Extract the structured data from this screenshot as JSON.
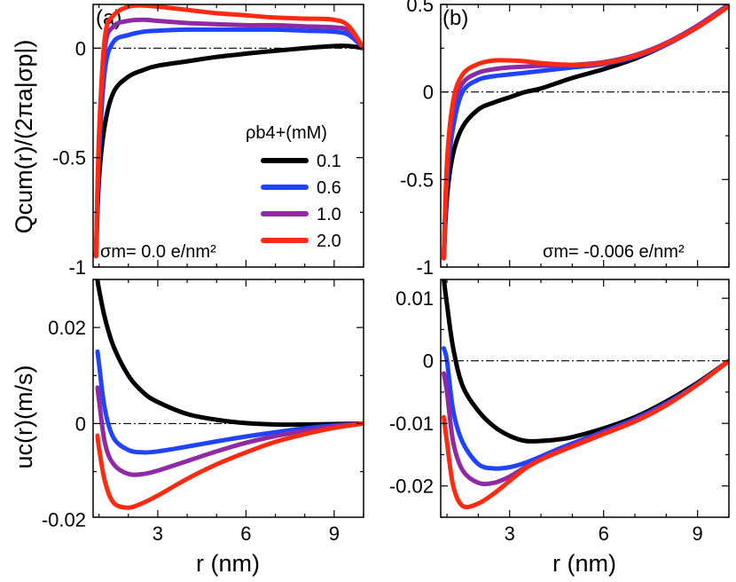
{
  "figure": {
    "x_axis_label": "r (nm)",
    "y_axis_label_top": "Qcum(r)/(2πa|σp|)",
    "y_axis_label_bottom": "uc(r)(m/s)"
  },
  "legend": {
    "title": "ρb4+(mM)",
    "entries": [
      {
        "label": "0.1",
        "color": "#000000"
      },
      {
        "label": "0.6",
        "color": "#1f44ff"
      },
      {
        "label": "1.0",
        "color": "#8e2aa3"
      },
      {
        "label": "2.0",
        "color": "#ff2a12"
      }
    ]
  },
  "chart_data": [
    {
      "id": "a",
      "type": "line",
      "panel_label": "(a)",
      "annotation": "σm= 0.0 e/nm²",
      "xlabel": "",
      "ylabel": "Qcum(r)/(2πa|σp|)",
      "xlim": [
        0.8,
        10
      ],
      "ylim": [
        -1,
        0.2
      ],
      "xticks": [
        3,
        6,
        9
      ],
      "yticks": [
        -1,
        -0.5,
        0
      ],
      "ytick_labels": [
        "-1",
        "-0.5",
        "0"
      ],
      "reference_line": 0,
      "series": [
        {
          "name": "0.1",
          "color": "#000000",
          "x": [
            0.9,
            1.0,
            1.2,
            1.5,
            2.0,
            2.5,
            3.0,
            4.0,
            5.0,
            6.0,
            7.0,
            8.0,
            9.0,
            9.5,
            10.0
          ],
          "y": [
            -0.95,
            -0.6,
            -0.35,
            -0.2,
            -0.13,
            -0.1,
            -0.08,
            -0.06,
            -0.04,
            -0.025,
            -0.012,
            0.0,
            0.01,
            0.01,
            0.0
          ]
        },
        {
          "name": "0.6",
          "color": "#1f44ff",
          "x": [
            0.9,
            1.0,
            1.2,
            1.5,
            2.0,
            2.5,
            3.0,
            4.0,
            5.0,
            6.0,
            7.0,
            8.0,
            9.0,
            9.5,
            10.0
          ],
          "y": [
            -0.95,
            -0.5,
            -0.1,
            0.03,
            0.06,
            0.075,
            0.08,
            0.085,
            0.085,
            0.085,
            0.085,
            0.08,
            0.075,
            0.06,
            0.0
          ]
        },
        {
          "name": "1.0",
          "color": "#8e2aa3",
          "x": [
            0.9,
            1.0,
            1.2,
            1.5,
            2.0,
            2.5,
            3.0,
            4.0,
            5.0,
            6.0,
            7.0,
            8.0,
            9.0,
            9.5,
            10.0
          ],
          "y": [
            -0.95,
            -0.45,
            0.0,
            0.1,
            0.125,
            0.13,
            0.125,
            0.115,
            0.11,
            0.105,
            0.105,
            0.1,
            0.095,
            0.08,
            0.0
          ]
        },
        {
          "name": "2.0",
          "color": "#ff2a12",
          "x": [
            0.9,
            1.0,
            1.2,
            1.5,
            2.0,
            2.5,
            3.0,
            4.0,
            5.0,
            6.0,
            7.0,
            8.0,
            9.0,
            9.5,
            10.0
          ],
          "y": [
            -0.95,
            -0.4,
            0.05,
            0.15,
            0.19,
            0.195,
            0.19,
            0.175,
            0.16,
            0.15,
            0.14,
            0.135,
            0.13,
            0.1,
            0.0
          ]
        }
      ]
    },
    {
      "id": "b",
      "type": "line",
      "panel_label": "(b)",
      "annotation": "σm= -0.006 e/nm²",
      "xlabel": "",
      "ylabel": "",
      "xlim": [
        0.8,
        10
      ],
      "ylim": [
        -1,
        0.5
      ],
      "xticks": [
        3,
        6,
        9
      ],
      "yticks": [
        -1,
        -0.5,
        0,
        0.5
      ],
      "ytick_labels": [
        "-1",
        "-0.5",
        "0",
        "0.5"
      ],
      "reference_line": 0,
      "series": [
        {
          "name": "0.1",
          "color": "#000000",
          "x": [
            0.9,
            1.0,
            1.2,
            1.5,
            2.0,
            2.5,
            3.0,
            3.5,
            4.0,
            5.0,
            6.0,
            7.0,
            8.0,
            9.0,
            10.0
          ],
          "y": [
            -0.95,
            -0.6,
            -0.35,
            -0.2,
            -0.1,
            -0.06,
            -0.03,
            0.0,
            0.02,
            0.08,
            0.13,
            0.19,
            0.27,
            0.37,
            0.49
          ]
        },
        {
          "name": "0.6",
          "color": "#1f44ff",
          "x": [
            0.9,
            1.0,
            1.2,
            1.5,
            2.0,
            2.5,
            3.0,
            3.5,
            4.0,
            5.0,
            6.0,
            7.0,
            8.0,
            9.0,
            10.0
          ],
          "y": [
            -0.95,
            -0.5,
            -0.2,
            0.0,
            0.07,
            0.09,
            0.1,
            0.11,
            0.12,
            0.14,
            0.16,
            0.2,
            0.27,
            0.37,
            0.5
          ]
        },
        {
          "name": "1.0",
          "color": "#8e2aa3",
          "x": [
            0.9,
            1.0,
            1.2,
            1.5,
            2.0,
            2.5,
            3.0,
            3.5,
            4.0,
            5.0,
            6.0,
            7.0,
            8.0,
            9.0,
            10.0
          ],
          "y": [
            -0.95,
            -0.45,
            -0.1,
            0.05,
            0.11,
            0.13,
            0.14,
            0.145,
            0.15,
            0.155,
            0.17,
            0.21,
            0.28,
            0.38,
            0.5
          ]
        },
        {
          "name": "2.0",
          "color": "#ff2a12",
          "x": [
            0.9,
            1.0,
            1.2,
            1.5,
            2.0,
            2.5,
            3.0,
            3.5,
            4.0,
            5.0,
            6.0,
            7.0,
            8.0,
            9.0,
            10.0
          ],
          "y": [
            -0.95,
            -0.4,
            -0.05,
            0.1,
            0.16,
            0.18,
            0.18,
            0.175,
            0.165,
            0.155,
            0.165,
            0.205,
            0.275,
            0.37,
            0.49
          ]
        }
      ]
    },
    {
      "id": "c",
      "type": "line",
      "panel_label": "",
      "annotation": "",
      "xlabel": "r (nm)",
      "ylabel": "uc(r)(m/s)",
      "xlim": [
        0.8,
        10
      ],
      "ylim": [
        -0.0195,
        0.03
      ],
      "xticks": [
        3,
        6,
        9
      ],
      "yticks": [
        -0.02,
        0,
        0.02
      ],
      "ytick_labels": [
        "-0.02",
        "0",
        "0.02"
      ],
      "reference_line": 0,
      "series": [
        {
          "name": "0.1",
          "color": "#000000",
          "x": [
            0.95,
            1.0,
            1.2,
            1.5,
            2.0,
            2.5,
            3.0,
            4.0,
            5.0,
            6.0,
            7.0,
            8.0,
            9.0,
            10.0
          ],
          "y": [
            0.03,
            0.028,
            0.022,
            0.016,
            0.01,
            0.0065,
            0.0045,
            0.002,
            0.0008,
            0.0001,
            -0.0002,
            -0.0002,
            -0.0001,
            0.0
          ]
        },
        {
          "name": "0.6",
          "color": "#1f44ff",
          "x": [
            0.95,
            1.0,
            1.2,
            1.5,
            2.0,
            2.5,
            3.0,
            4.0,
            5.0,
            6.0,
            7.0,
            8.0,
            9.0,
            10.0
          ],
          "y": [
            0.015,
            0.0125,
            0.003,
            -0.003,
            -0.0055,
            -0.006,
            -0.0058,
            -0.0048,
            -0.0037,
            -0.0027,
            -0.0018,
            -0.001,
            -0.0004,
            0.0
          ]
        },
        {
          "name": "1.0",
          "color": "#8e2aa3",
          "x": [
            0.95,
            1.0,
            1.2,
            1.5,
            2.0,
            2.5,
            3.0,
            4.0,
            5.0,
            6.0,
            7.0,
            8.0,
            9.0,
            10.0
          ],
          "y": [
            0.0075,
            0.005,
            -0.004,
            -0.0085,
            -0.0105,
            -0.0105,
            -0.0098,
            -0.0078,
            -0.0058,
            -0.004,
            -0.0026,
            -0.0015,
            -0.0006,
            0.0
          ]
        },
        {
          "name": "2.0",
          "color": "#ff2a12",
          "x": [
            0.95,
            1.0,
            1.2,
            1.5,
            2.0,
            2.5,
            3.0,
            4.0,
            5.0,
            6.0,
            7.0,
            8.0,
            9.0,
            10.0
          ],
          "y": [
            -0.0025,
            -0.005,
            -0.012,
            -0.0165,
            -0.0175,
            -0.0165,
            -0.015,
            -0.0115,
            -0.0085,
            -0.006,
            -0.0038,
            -0.0022,
            -0.0009,
            0.0
          ]
        }
      ]
    },
    {
      "id": "d",
      "type": "line",
      "panel_label": "",
      "annotation": "",
      "xlabel": "r (nm)",
      "ylabel": "",
      "xlim": [
        0.8,
        10
      ],
      "ylim": [
        -0.025,
        0.013
      ],
      "xticks": [
        3,
        6,
        9
      ],
      "yticks": [
        -0.02,
        -0.01,
        0,
        0.01
      ],
      "ytick_labels": [
        "-0.02",
        "-0.01",
        "0",
        "0.01"
      ],
      "reference_line": 0,
      "series": [
        {
          "name": "0.1",
          "color": "#000000",
          "x": [
            0.9,
            1.0,
            1.2,
            1.5,
            2.0,
            2.5,
            3.0,
            3.5,
            4.0,
            4.5,
            5.0,
            6.0,
            7.0,
            8.0,
            9.0,
            10.0
          ],
          "y": [
            0.013,
            0.009,
            0.002,
            -0.004,
            -0.008,
            -0.0105,
            -0.012,
            -0.0128,
            -0.0128,
            -0.0126,
            -0.0122,
            -0.0108,
            -0.009,
            -0.0065,
            -0.0035,
            0.0
          ]
        },
        {
          "name": "0.6",
          "color": "#1f44ff",
          "x": [
            0.9,
            1.0,
            1.2,
            1.5,
            2.0,
            2.5,
            3.0,
            3.5,
            4.0,
            4.5,
            5.0,
            6.0,
            7.0,
            8.0,
            9.0,
            10.0
          ],
          "y": [
            0.002,
            0.0,
            -0.008,
            -0.013,
            -0.0165,
            -0.0172,
            -0.017,
            -0.0163,
            -0.0153,
            -0.0142,
            -0.0132,
            -0.0113,
            -0.0093,
            -0.0068,
            -0.0037,
            0.0
          ]
        },
        {
          "name": "1.0",
          "color": "#8e2aa3",
          "x": [
            0.9,
            1.0,
            1.2,
            1.5,
            2.0,
            2.5,
            3.0,
            3.5,
            4.0,
            4.5,
            5.0,
            6.0,
            7.0,
            8.0,
            9.0,
            10.0
          ],
          "y": [
            -0.002,
            -0.005,
            -0.013,
            -0.0175,
            -0.0195,
            -0.0195,
            -0.0185,
            -0.017,
            -0.0157,
            -0.0145,
            -0.0135,
            -0.0115,
            -0.0095,
            -0.007,
            -0.0038,
            0.0
          ]
        },
        {
          "name": "2.0",
          "color": "#ff2a12",
          "x": [
            0.9,
            1.0,
            1.2,
            1.5,
            2.0,
            2.5,
            3.0,
            3.5,
            4.0,
            4.5,
            5.0,
            6.0,
            7.0,
            8.0,
            9.0,
            10.0
          ],
          "y": [
            -0.009,
            -0.013,
            -0.02,
            -0.0232,
            -0.0228,
            -0.0212,
            -0.0192,
            -0.0172,
            -0.0158,
            -0.0147,
            -0.0137,
            -0.0117,
            -0.0097,
            -0.0071,
            -0.0038,
            0.0
          ]
        }
      ]
    }
  ]
}
